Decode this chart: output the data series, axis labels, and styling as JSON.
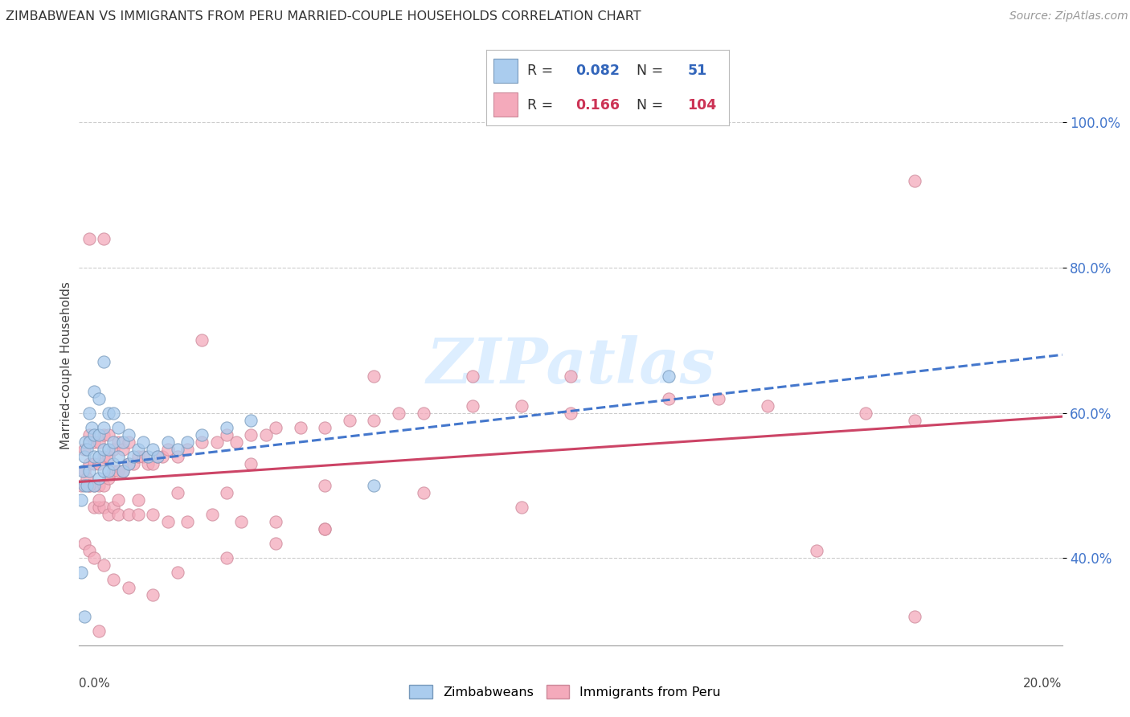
{
  "title": "ZIMBABWEAN VS IMMIGRANTS FROM PERU MARRIED-COUPLE HOUSEHOLDS CORRELATION CHART",
  "source": "Source: ZipAtlas.com",
  "ylabel": "Married-couple Households",
  "yticks": [
    "40.0%",
    "60.0%",
    "80.0%",
    "100.0%"
  ],
  "ytick_vals": [
    0.4,
    0.6,
    0.8,
    1.0
  ],
  "xlim": [
    0.0,
    0.2
  ],
  "ylim": [
    0.28,
    1.05
  ],
  "color_zim": "#aaccee",
  "color_peru": "#f4aabb",
  "color_zim_edge": "#7799bb",
  "color_peru_edge": "#cc8899",
  "color_zim_line": "#4477cc",
  "color_peru_line": "#cc4466",
  "color_zim_text": "#3366bb",
  "color_peru_text": "#cc3355",
  "watermark": "ZIPatlas",
  "watermark_color": "#ddeeff",
  "background": "#ffffff",
  "gridcolor": "#cccccc",
  "zim_x": [
    0.0005,
    0.0008,
    0.001,
    0.001,
    0.0012,
    0.0015,
    0.0015,
    0.002,
    0.002,
    0.002,
    0.0025,
    0.003,
    0.003,
    0.003,
    0.003,
    0.004,
    0.004,
    0.004,
    0.004,
    0.005,
    0.005,
    0.005,
    0.005,
    0.006,
    0.006,
    0.006,
    0.007,
    0.007,
    0.007,
    0.008,
    0.008,
    0.009,
    0.009,
    0.01,
    0.01,
    0.011,
    0.012,
    0.013,
    0.014,
    0.015,
    0.016,
    0.018,
    0.02,
    0.022,
    0.025,
    0.03,
    0.035,
    0.0005,
    0.001,
    0.06,
    0.12
  ],
  "zim_y": [
    0.48,
    0.52,
    0.5,
    0.54,
    0.56,
    0.5,
    0.55,
    0.52,
    0.56,
    0.6,
    0.58,
    0.5,
    0.54,
    0.57,
    0.63,
    0.51,
    0.54,
    0.57,
    0.62,
    0.52,
    0.55,
    0.58,
    0.67,
    0.52,
    0.55,
    0.6,
    0.53,
    0.56,
    0.6,
    0.54,
    0.58,
    0.52,
    0.56,
    0.53,
    0.57,
    0.54,
    0.55,
    0.56,
    0.54,
    0.55,
    0.54,
    0.56,
    0.55,
    0.56,
    0.57,
    0.58,
    0.59,
    0.38,
    0.32,
    0.5,
    0.65
  ],
  "peru_x": [
    0.0005,
    0.001,
    0.001,
    0.0015,
    0.002,
    0.002,
    0.002,
    0.003,
    0.003,
    0.003,
    0.004,
    0.004,
    0.004,
    0.005,
    0.005,
    0.005,
    0.006,
    0.006,
    0.006,
    0.007,
    0.007,
    0.008,
    0.008,
    0.009,
    0.009,
    0.01,
    0.01,
    0.011,
    0.012,
    0.013,
    0.014,
    0.015,
    0.016,
    0.017,
    0.018,
    0.02,
    0.022,
    0.025,
    0.028,
    0.03,
    0.032,
    0.035,
    0.038,
    0.04,
    0.045,
    0.05,
    0.055,
    0.06,
    0.065,
    0.07,
    0.08,
    0.09,
    0.1,
    0.12,
    0.14,
    0.16,
    0.17,
    0.003,
    0.004,
    0.005,
    0.006,
    0.007,
    0.008,
    0.01,
    0.012,
    0.015,
    0.018,
    0.022,
    0.027,
    0.033,
    0.04,
    0.05,
    0.001,
    0.002,
    0.003,
    0.005,
    0.007,
    0.01,
    0.015,
    0.02,
    0.03,
    0.04,
    0.05,
    0.07,
    0.1,
    0.13,
    0.002,
    0.004,
    0.008,
    0.012,
    0.02,
    0.03,
    0.05,
    0.08,
    0.025,
    0.035,
    0.06,
    0.09,
    0.005,
    0.17,
    0.15,
    0.002,
    0.004,
    0.17
  ],
  "peru_y": [
    0.5,
    0.52,
    0.55,
    0.51,
    0.5,
    0.53,
    0.57,
    0.5,
    0.53,
    0.56,
    0.5,
    0.53,
    0.56,
    0.5,
    0.54,
    0.57,
    0.51,
    0.54,
    0.57,
    0.52,
    0.55,
    0.52,
    0.56,
    0.52,
    0.55,
    0.53,
    0.56,
    0.53,
    0.54,
    0.54,
    0.53,
    0.53,
    0.54,
    0.54,
    0.55,
    0.54,
    0.55,
    0.56,
    0.56,
    0.57,
    0.56,
    0.57,
    0.57,
    0.58,
    0.58,
    0.58,
    0.59,
    0.59,
    0.6,
    0.6,
    0.61,
    0.61,
    0.6,
    0.62,
    0.61,
    0.6,
    0.59,
    0.47,
    0.47,
    0.47,
    0.46,
    0.47,
    0.46,
    0.46,
    0.46,
    0.46,
    0.45,
    0.45,
    0.46,
    0.45,
    0.45,
    0.44,
    0.42,
    0.41,
    0.4,
    0.39,
    0.37,
    0.36,
    0.35,
    0.38,
    0.4,
    0.42,
    0.44,
    0.49,
    0.65,
    0.62,
    0.5,
    0.48,
    0.48,
    0.48,
    0.49,
    0.49,
    0.5,
    0.65,
    0.7,
    0.53,
    0.65,
    0.47,
    0.84,
    0.92,
    0.41,
    0.84,
    0.3,
    0.32
  ]
}
